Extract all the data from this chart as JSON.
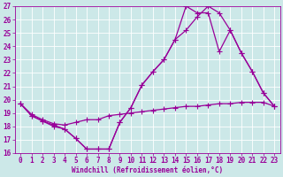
{
  "title": "",
  "xlabel": "Windchill (Refroidissement éolien,°C)",
  "x_values": [
    0,
    1,
    2,
    3,
    4,
    5,
    6,
    7,
    8,
    9,
    10,
    11,
    12,
    13,
    14,
    15,
    16,
    17,
    18,
    19,
    20,
    21,
    22,
    23
  ],
  "line1_y": [
    19.7,
    18.8,
    18.4,
    18.1,
    17.8,
    17.1,
    16.3,
    16.3,
    16.3,
    18.3,
    19.4,
    21.1,
    22.1,
    23.0,
    24.5,
    25.2,
    26.2,
    27.0,
    26.5,
    25.2,
    23.5,
    22.1,
    20.5,
    19.5
  ],
  "line2_y": [
    19.7,
    18.8,
    18.4,
    18.0,
    17.8,
    17.1,
    16.3,
    16.3,
    16.3,
    18.3,
    19.4,
    21.1,
    22.1,
    23.0,
    24.5,
    27.0,
    26.5,
    26.5,
    23.6,
    25.2,
    23.5,
    22.1,
    20.5,
    19.5
  ],
  "line3_y": [
    19.7,
    18.9,
    18.5,
    18.2,
    18.1,
    18.3,
    18.5,
    18.5,
    18.8,
    18.9,
    19.0,
    19.1,
    19.2,
    19.3,
    19.4,
    19.5,
    19.5,
    19.6,
    19.7,
    19.7,
    19.8,
    19.8,
    19.8,
    19.5
  ],
  "line_color": "#990099",
  "bg_color": "#cce8e8",
  "grid_color": "#bbdddd",
  "ylim_min": 16,
  "ylim_max": 27,
  "xlim_min": 0,
  "xlim_max": 23,
  "yticks": [
    16,
    17,
    18,
    19,
    20,
    21,
    22,
    23,
    24,
    25,
    26,
    27
  ],
  "xticks": [
    0,
    1,
    2,
    3,
    4,
    5,
    6,
    7,
    8,
    9,
    10,
    11,
    12,
    13,
    14,
    15,
    16,
    17,
    18,
    19,
    20,
    21,
    22,
    23
  ],
  "tick_fontsize": 5.5,
  "xlabel_fontsize": 5.5,
  "marker_size": 2.0,
  "line_width": 0.9
}
